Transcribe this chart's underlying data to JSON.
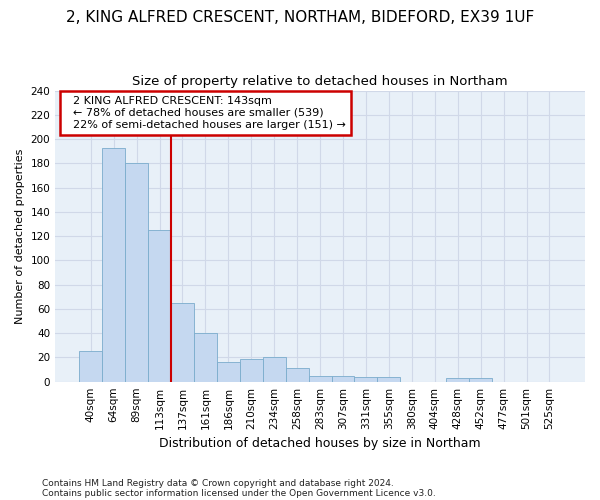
{
  "title1": "2, KING ALFRED CRESCENT, NORTHAM, BIDEFORD, EX39 1UF",
  "title2": "Size of property relative to detached houses in Northam",
  "xlabel": "Distribution of detached houses by size in Northam",
  "ylabel": "Number of detached properties",
  "footnote1": "Contains HM Land Registry data © Crown copyright and database right 2024.",
  "footnote2": "Contains public sector information licensed under the Open Government Licence v3.0.",
  "annotation_line1": "  2 KING ALFRED CRESCENT: 143sqm",
  "annotation_line2": "  ← 78% of detached houses are smaller (539)",
  "annotation_line3": "  22% of semi-detached houses are larger (151) →",
  "bin_labels": [
    "40sqm",
    "64sqm",
    "89sqm",
    "113sqm",
    "137sqm",
    "161sqm",
    "186sqm",
    "210sqm",
    "234sqm",
    "258sqm",
    "283sqm",
    "307sqm",
    "331sqm",
    "355sqm",
    "380sqm",
    "404sqm",
    "428sqm",
    "452sqm",
    "477sqm",
    "501sqm",
    "525sqm"
  ],
  "bar_values": [
    25,
    193,
    180,
    125,
    65,
    40,
    16,
    19,
    20,
    11,
    5,
    5,
    4,
    4,
    0,
    0,
    3,
    3,
    0,
    0,
    0
  ],
  "bar_color": "#c5d8f0",
  "bar_edge_color": "#7aaccc",
  "vline_x_index": 4,
  "vline_color": "#cc0000",
  "annotation_box_color": "#cc0000",
  "plot_bg_color": "#e8f0f8",
  "fig_bg_color": "#ffffff",
  "ylim": [
    0,
    240
  ],
  "yticks": [
    0,
    20,
    40,
    60,
    80,
    100,
    120,
    140,
    160,
    180,
    200,
    220,
    240
  ],
  "title1_fontsize": 11,
  "title2_fontsize": 9.5,
  "ylabel_fontsize": 8,
  "xlabel_fontsize": 9,
  "tick_fontsize": 7.5,
  "annot_fontsize": 8
}
